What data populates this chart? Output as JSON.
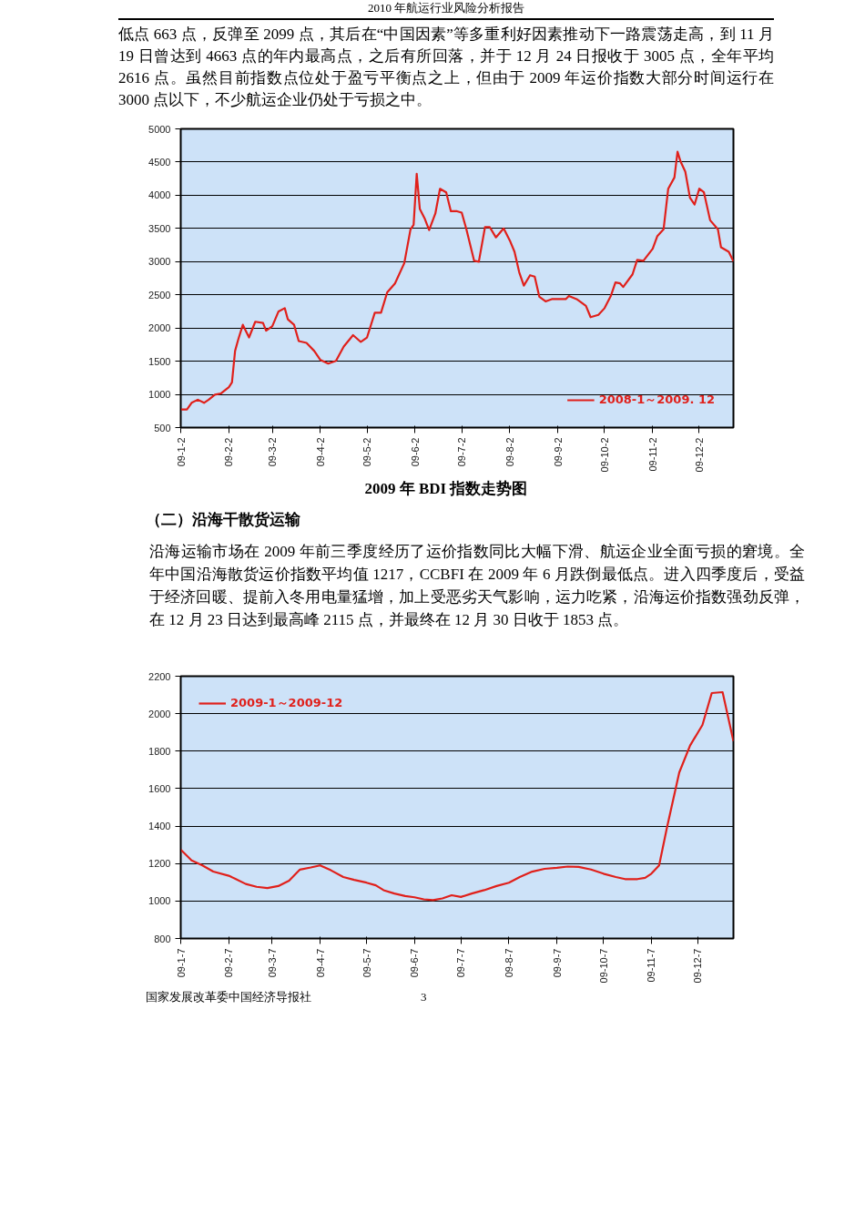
{
  "chart_data": [
    {
      "type": "line",
      "title": "2009 年 BDI 指数走势图",
      "annotations": [
        "2010 年航运行业风险分析报告",
        "低点 663 点，反弹至 2099 点，其后在“中国因素”等多重利好因素推动下一路震荡走高，到 11 月 19 日曾达到 4663 点的年内最高点，之后有所回落，并于 12 月 24 日报收于 3005 点，全年平均 2616 点。虽然目前指数点位处于盈亏平衡点之上，但由于 2009 年运价指数大部分时间运行在 3000 点以下，不少航运企业仍处于亏损之中。"
      ],
      "x": [
        "2009-01-02",
        "2009-01-06",
        "2009-01-09",
        "2009-01-13",
        "2009-01-17",
        "2009-01-20",
        "2009-01-24",
        "2009-01-28",
        "2009-02-02",
        "2009-02-04",
        "2009-02-06",
        "2009-02-08",
        "2009-02-11",
        "2009-02-15",
        "2009-02-19",
        "2009-02-24",
        "2009-02-26",
        "2009-03-02",
        "2009-03-06",
        "2009-03-10",
        "2009-03-12",
        "2009-03-16",
        "2009-03-19",
        "2009-03-24",
        "2009-03-29",
        "2009-04-02",
        "2009-04-07",
        "2009-04-12",
        "2009-04-17",
        "2009-04-23",
        "2009-04-28",
        "2009-05-02",
        "2009-05-07",
        "2009-05-11",
        "2009-05-15",
        "2009-05-20",
        "2009-05-26",
        "2009-05-30",
        "2009-06-01",
        "2009-06-03",
        "2009-06-05",
        "2009-06-08",
        "2009-06-11",
        "2009-06-15",
        "2009-06-18",
        "2009-06-22",
        "2009-06-25",
        "2009-06-29",
        "2009-07-02",
        "2009-07-05",
        "2009-07-10",
        "2009-07-13",
        "2009-07-17",
        "2009-07-20",
        "2009-07-24",
        "2009-07-29",
        "2009-08-02",
        "2009-08-05",
        "2009-08-08",
        "2009-08-11",
        "2009-08-15",
        "2009-08-18",
        "2009-08-21",
        "2009-08-25",
        "2009-08-29",
        "2009-09-07",
        "2009-09-09",
        "2009-09-14",
        "2009-09-20",
        "2009-09-23",
        "2009-09-28",
        "2009-10-02",
        "2009-10-06",
        "2009-10-09",
        "2009-10-12",
        "2009-10-14",
        "2009-10-20",
        "2009-10-23",
        "2009-10-27",
        "2009-11-02",
        "2009-11-05",
        "2009-11-09",
        "2009-11-12",
        "2009-11-16",
        "2009-11-18",
        "2009-11-20",
        "2009-11-23",
        "2009-11-26",
        "2009-11-29",
        "2009-12-02",
        "2009-12-05",
        "2009-12-09",
        "2009-12-14",
        "2009-12-16",
        "2009-12-21",
        "2009-12-24"
      ],
      "series": [
        {
          "name": "2008-1～2009. 12",
          "color": "#e0201b",
          "values": [
            772,
            772,
            873,
            920,
            873,
            920,
            995,
            1015,
            1110,
            1180,
            1654,
            1824,
            2048,
            1858,
            2095,
            2075,
            1960,
            2027,
            2250,
            2299,
            2130,
            2048,
            1804,
            1776,
            1654,
            1518,
            1464,
            1505,
            1722,
            1892,
            1790,
            1858,
            2231,
            2231,
            2537,
            2672,
            2978,
            3487,
            3555,
            4322,
            3793,
            3657,
            3474,
            3725,
            4098,
            4044,
            3759,
            3759,
            3738,
            3487,
            3012,
            2998,
            3521,
            3521,
            3365,
            3500,
            3317,
            3148,
            2842,
            2638,
            2795,
            2774,
            2469,
            2401,
            2435,
            2435,
            2482,
            2435,
            2333,
            2163,
            2197,
            2299,
            2482,
            2686,
            2672,
            2618,
            2808,
            3025,
            3012,
            3195,
            3385,
            3487,
            4098,
            4268,
            4655,
            4505,
            4356,
            3962,
            3861,
            4098,
            4044,
            3623,
            3487,
            3216,
            3148,
            3005
          ]
        }
      ],
      "xlim": [
        "2009-01-02",
        "2009-12-24"
      ],
      "xticks": [
        {
          "value": "2009-01-02",
          "label": "09-1-2"
        },
        {
          "value": "2009-02-02",
          "label": "09-2-2"
        },
        {
          "value": "2009-03-02",
          "label": "09-3-2"
        },
        {
          "value": "2009-04-02",
          "label": "09-4-2"
        },
        {
          "value": "2009-05-02",
          "label": "09-5-2"
        },
        {
          "value": "2009-06-02",
          "label": "09-6-2"
        },
        {
          "value": "2009-07-02",
          "label": "09-7-2"
        },
        {
          "value": "2009-08-02",
          "label": "09-8-2"
        },
        {
          "value": "2009-09-02",
          "label": "09-9-2"
        },
        {
          "value": "2009-10-02",
          "label": "09-10-2"
        },
        {
          "value": "2009-11-02",
          "label": "09-11-2"
        },
        {
          "value": "2009-12-02",
          "label": "09-12-2"
        }
      ],
      "ylim": [
        500,
        5000
      ],
      "yticks": [
        500,
        1000,
        1500,
        2000,
        2500,
        3000,
        3500,
        4000,
        4500,
        5000
      ],
      "grid": "y",
      "legend": "bottom right",
      "marker": "none",
      "line_style": "solid"
    },
    {
      "type": "line",
      "annotations": [
        "（二）沿海干散货运输",
        "沿海运输市场在 2009 年前三季度经历了运价指数同比大幅下滑、航运企业全面亏损的窘境。全年中国沿海散货运价指数平均值 1217，CCBFI 在 2009 年 6 月跌倒最低点。进入四季度后，受益于经济回暖、提前入冬用电量猛增，加上受恶劣天气影响，运力吃紧，沿海运价指数强劲反弹，在 12 月 23 日达到最高峰 2115 点，并最终在 12 月 30 日收于 1853 点。",
        "国家发展改革委中国经济导报社",
        "3"
      ],
      "x": [
        "2009-01-07",
        "2009-01-14",
        "2009-01-21",
        "2009-01-28",
        "2009-02-07",
        "2009-02-11",
        "2009-02-18",
        "2009-02-25",
        "2009-03-04",
        "2009-03-11",
        "2009-03-18",
        "2009-03-25",
        "2009-04-01",
        "2009-04-07",
        "2009-04-14",
        "2009-04-22",
        "2009-04-29",
        "2009-05-07",
        "2009-05-13",
        "2009-05-18",
        "2009-05-25",
        "2009-06-01",
        "2009-06-07",
        "2009-06-13",
        "2009-06-19",
        "2009-06-25",
        "2009-07-01",
        "2009-07-07",
        "2009-07-14",
        "2009-07-22",
        "2009-07-30",
        "2009-08-07",
        "2009-08-14",
        "2009-08-22",
        "2009-08-30",
        "2009-09-07",
        "2009-09-14",
        "2009-09-21",
        "2009-09-29",
        "2009-10-07",
        "2009-10-15",
        "2009-10-21",
        "2009-10-29",
        "2009-11-03",
        "2009-11-07",
        "2009-11-12",
        "2009-11-17",
        "2009-11-25",
        "2009-12-02",
        "2009-12-10",
        "2009-12-16",
        "2009-12-23",
        "2009-12-30"
      ],
      "series": [
        {
          "name": "2009-1～2009-12",
          "color": "#e0201b",
          "values": [
            1274,
            1217,
            1190,
            1157,
            1135,
            1120,
            1091,
            1076,
            1069,
            1080,
            1109,
            1168,
            1179,
            1190,
            1164,
            1128,
            1113,
            1098,
            1084,
            1058,
            1040,
            1027,
            1020,
            1009,
            1005,
            1014,
            1031,
            1022,
            1040,
            1058,
            1080,
            1098,
            1128,
            1157,
            1172,
            1177,
            1184,
            1182,
            1168,
            1146,
            1128,
            1117,
            1117,
            1124,
            1146,
            1190,
            1389,
            1686,
            1830,
            1940,
            2110,
            2115,
            1853
          ]
        }
      ],
      "xlim": [
        "2009-01-07",
        "2009-12-30"
      ],
      "xticks": [
        {
          "value": "2009-01-07",
          "label": "09-1-7"
        },
        {
          "value": "2009-02-07",
          "label": "09-2-7"
        },
        {
          "value": "2009-03-07",
          "label": "09-3-7"
        },
        {
          "value": "2009-04-07",
          "label": "09-4-7"
        },
        {
          "value": "2009-05-07",
          "label": "09-5-7"
        },
        {
          "value": "2009-06-07",
          "label": "09-6-7"
        },
        {
          "value": "2009-07-07",
          "label": "09-7-7"
        },
        {
          "value": "2009-08-07",
          "label": "09-8-7"
        },
        {
          "value": "2009-09-07",
          "label": "09-9-7"
        },
        {
          "value": "2009-10-07",
          "label": "09-10-7"
        },
        {
          "value": "2009-11-07",
          "label": "09-11-7"
        },
        {
          "value": "2009-12-07",
          "label": "09-12-7"
        }
      ],
      "ylim": [
        800,
        2200
      ],
      "yticks": [
        800,
        1000,
        1200,
        1400,
        1600,
        1800,
        2000,
        2200
      ],
      "grid": "y",
      "legend": "top left",
      "marker": "none",
      "line_style": "solid"
    }
  ]
}
